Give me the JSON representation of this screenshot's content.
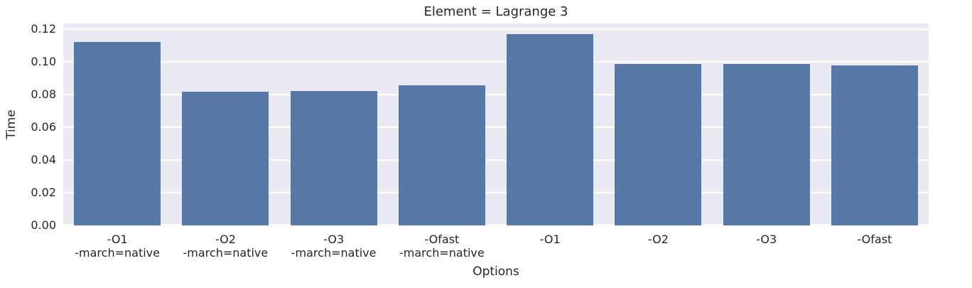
{
  "colors": {
    "bar": "#5878a8",
    "plot_background": "#eaeaf2",
    "gridline": "#ffffff",
    "figure_background": "#ffffff",
    "text": "#262626"
  },
  "chart_data": {
    "type": "bar",
    "title": "Element = Lagrange 3",
    "xlabel": "Options",
    "ylabel": "Time",
    "categories": [
      "-O1\n-march=native",
      "-O2\n-march=native",
      "-O3\n-march=native",
      "-Ofast\n-march=native",
      "-O1",
      "-O2",
      "-O3",
      "-Ofast"
    ],
    "values": [
      0.1122,
      0.0816,
      0.0822,
      0.0858,
      0.1168,
      0.0988,
      0.0985,
      0.0978
    ],
    "yticks": [
      0.0,
      0.02,
      0.04,
      0.06,
      0.08,
      0.1,
      0.12
    ],
    "ytick_labels": [
      "0.00",
      "0.02",
      "0.04",
      "0.06",
      "0.08",
      "0.10",
      "0.12"
    ],
    "ylim": [
      0,
      0.1234
    ],
    "grid": true,
    "grid_axis": "y",
    "legend": false,
    "bar_width_fraction": 0.8
  }
}
